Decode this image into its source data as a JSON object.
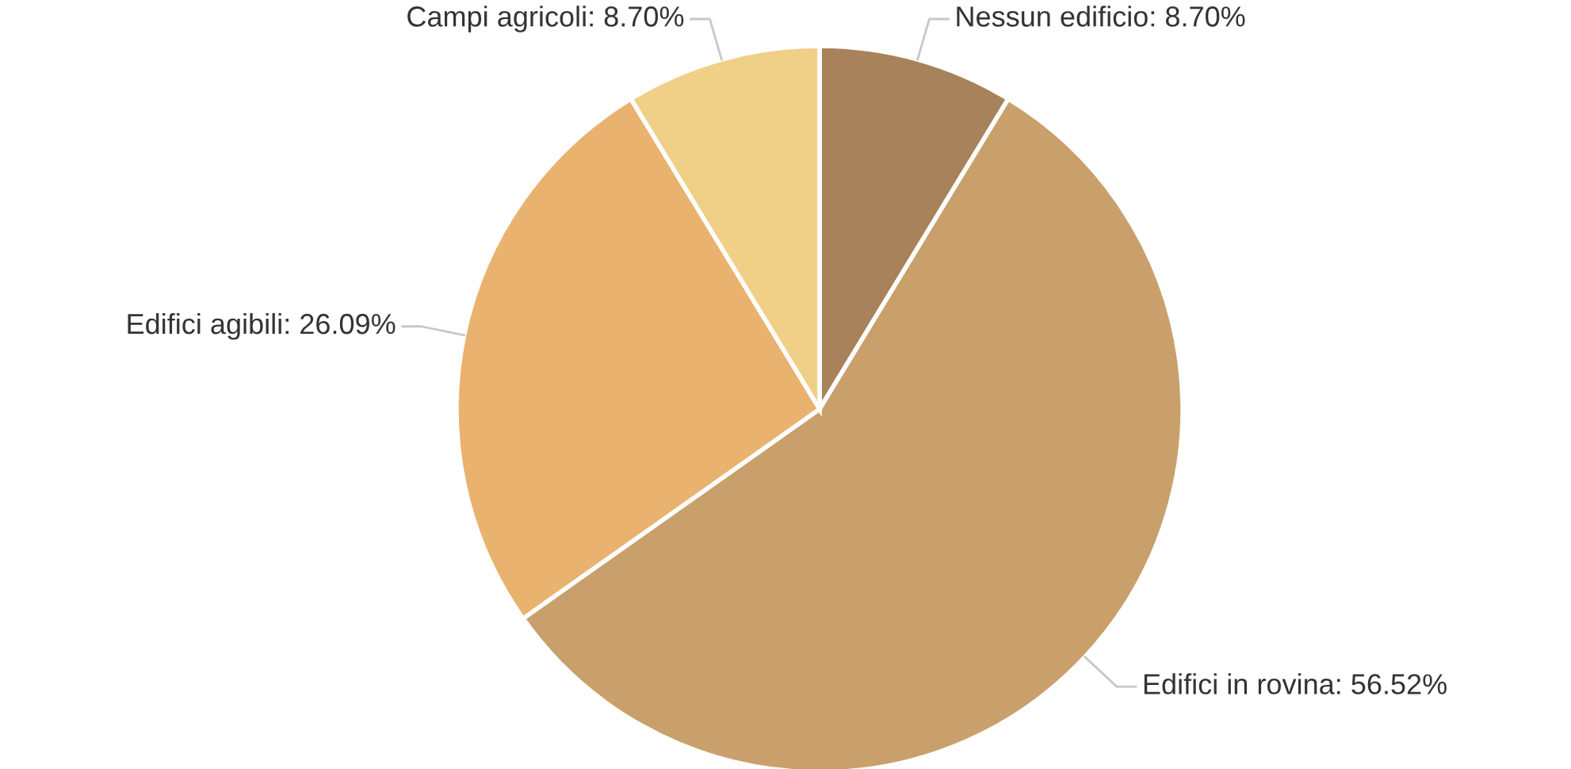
{
  "chart_data": {
    "type": "pie",
    "categories": [
      "Nessun edificio",
      "Edifici in rovina",
      "Edifici agibili",
      "Campi agricoli"
    ],
    "values": [
      8.7,
      56.52,
      26.09,
      8.7
    ],
    "value_labels": [
      "8.70%",
      "56.52%",
      "26.09%",
      "8.70%"
    ],
    "colors": [
      "#a8825a",
      "#c9a06b",
      "#e9b26f",
      "#f0cf86"
    ],
    "legend": false
  }
}
